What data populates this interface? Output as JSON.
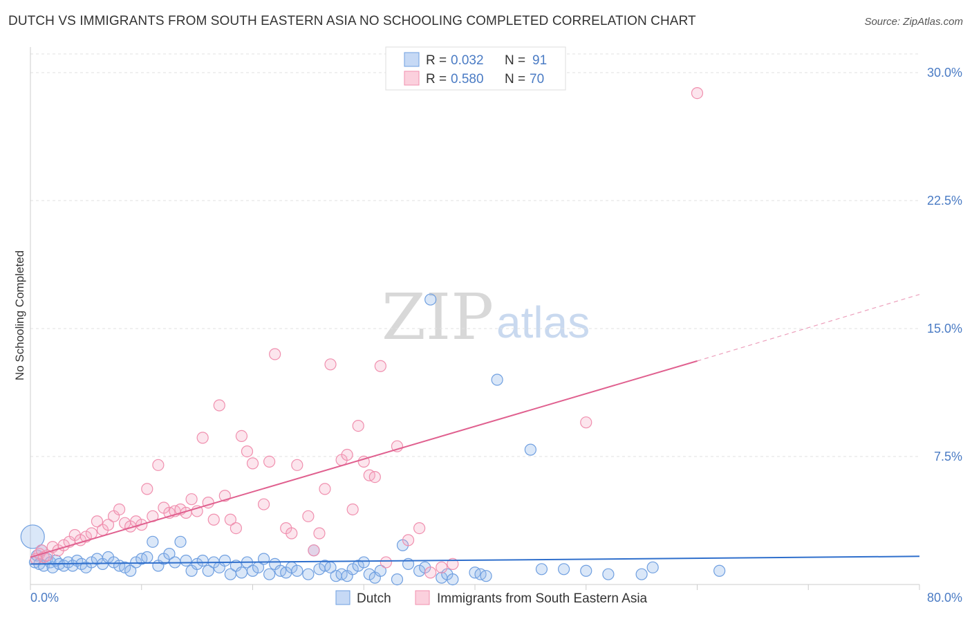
{
  "title": "DUTCH VS IMMIGRANTS FROM SOUTH EASTERN ASIA NO SCHOOLING COMPLETED CORRELATION CHART",
  "source": "Source: ZipAtlas.com",
  "watermark": {
    "zip": "ZIP",
    "atlas": "atlas"
  },
  "colors": {
    "dutch": "#6f9fe0",
    "dutch_line": "#2f6fcc",
    "immigrants": "#f08fae",
    "immigrants_line": "#e0608f",
    "axis_text": "#4a7bc4"
  },
  "chart_data": {
    "type": "scatter",
    "title": "DUTCH VS IMMIGRANTS FROM SOUTH EASTERN ASIA NO SCHOOLING COMPLETED CORRELATION CHART",
    "xlabel": "",
    "ylabel": "No Schooling Completed",
    "xlim": [
      0,
      80
    ],
    "ylim": [
      0,
      31.5
    ],
    "x_tick_labels": [
      "0.0%",
      "80.0%"
    ],
    "y_ticks": [
      7.5,
      15.0,
      22.5,
      30.0
    ],
    "y_tick_labels": [
      "7.5%",
      "15.0%",
      "22.5%",
      "30.0%"
    ],
    "grid": true,
    "legend_stats": [
      {
        "r_label": "R =",
        "r_value": "0.032",
        "n_label": "N =",
        "n_value": "91"
      },
      {
        "r_label": "R =",
        "r_value": "0.580",
        "n_label": "N =",
        "n_value": "70"
      }
    ],
    "series": [
      {
        "name": "Dutch",
        "trend": {
          "x0": 0,
          "y0": 1.2,
          "x1": 80,
          "y1": 1.65
        },
        "points": [
          [
            0.2,
            2.8
          ],
          [
            0.4,
            1.3
          ],
          [
            0.6,
            1.7
          ],
          [
            0.8,
            1.2
          ],
          [
            1.0,
            2.0
          ],
          [
            1.2,
            1.1
          ],
          [
            1.5,
            1.5
          ],
          [
            1.8,
            1.3
          ],
          [
            2.0,
            1.0
          ],
          [
            2.3,
            1.4
          ],
          [
            2.6,
            1.2
          ],
          [
            3.0,
            1.1
          ],
          [
            3.4,
            1.3
          ],
          [
            3.8,
            1.1
          ],
          [
            4.2,
            1.4
          ],
          [
            4.6,
            1.2
          ],
          [
            5.0,
            1.0
          ],
          [
            5.5,
            1.3
          ],
          [
            6.0,
            1.5
          ],
          [
            6.5,
            1.2
          ],
          [
            7.0,
            1.6
          ],
          [
            7.5,
            1.3
          ],
          [
            8.0,
            1.1
          ],
          [
            8.5,
            1.0
          ],
          [
            9.0,
            0.8
          ],
          [
            9.5,
            1.3
          ],
          [
            10.0,
            1.5
          ],
          [
            10.5,
            1.6
          ],
          [
            11.0,
            2.5
          ],
          [
            11.5,
            1.1
          ],
          [
            12.0,
            1.5
          ],
          [
            12.5,
            1.8
          ],
          [
            13.0,
            1.3
          ],
          [
            13.5,
            2.5
          ],
          [
            14.0,
            1.4
          ],
          [
            14.5,
            0.8
          ],
          [
            15.0,
            1.2
          ],
          [
            15.5,
            1.4
          ],
          [
            16.0,
            0.8
          ],
          [
            16.5,
            1.3
          ],
          [
            17.0,
            1.0
          ],
          [
            17.5,
            1.4
          ],
          [
            18.0,
            0.6
          ],
          [
            18.5,
            1.1
          ],
          [
            19.0,
            0.7
          ],
          [
            19.5,
            1.3
          ],
          [
            20.0,
            0.8
          ],
          [
            20.5,
            1.0
          ],
          [
            21.0,
            1.5
          ],
          [
            21.5,
            0.6
          ],
          [
            22.0,
            1.2
          ],
          [
            22.5,
            0.8
          ],
          [
            23.0,
            0.7
          ],
          [
            23.5,
            1.0
          ],
          [
            24.0,
            0.8
          ],
          [
            25.0,
            0.6
          ],
          [
            25.5,
            2.0
          ],
          [
            26.0,
            0.9
          ],
          [
            26.5,
            1.1
          ],
          [
            27.0,
            1.0
          ],
          [
            27.5,
            0.5
          ],
          [
            28.0,
            0.6
          ],
          [
            28.5,
            0.5
          ],
          [
            29.0,
            0.9
          ],
          [
            29.5,
            1.1
          ],
          [
            30.0,
            1.3
          ],
          [
            30.5,
            0.6
          ],
          [
            31.0,
            0.4
          ],
          [
            31.5,
            0.8
          ],
          [
            33.0,
            0.3
          ],
          [
            33.5,
            2.3
          ],
          [
            34.0,
            1.2
          ],
          [
            35.0,
            0.8
          ],
          [
            35.5,
            1.0
          ],
          [
            36.0,
            16.7
          ],
          [
            37.0,
            0.4
          ],
          [
            37.5,
            0.6
          ],
          [
            38.0,
            0.3
          ],
          [
            40.0,
            0.7
          ],
          [
            40.5,
            0.6
          ],
          [
            41.0,
            0.5
          ],
          [
            42.0,
            12.0
          ],
          [
            45.0,
            7.9
          ],
          [
            46.0,
            0.9
          ],
          [
            48.0,
            0.9
          ],
          [
            50.0,
            0.8
          ],
          [
            52.0,
            0.6
          ],
          [
            55.0,
            0.6
          ],
          [
            56.0,
            1.0
          ],
          [
            62.0,
            0.8
          ]
        ]
      },
      {
        "name": "Immigrants from South Eastern Asia",
        "trend": {
          "x0": 0,
          "y0": 1.6,
          "x1": 60,
          "y1": 13.1,
          "dashed_x1": 80,
          "dashed_y1": 17.0
        },
        "points": [
          [
            0.5,
            1.5
          ],
          [
            0.8,
            1.8
          ],
          [
            1.0,
            2.0
          ],
          [
            1.2,
            1.6
          ],
          [
            1.5,
            1.7
          ],
          [
            2.0,
            2.2
          ],
          [
            2.5,
            2.0
          ],
          [
            3.0,
            2.3
          ],
          [
            3.5,
            2.5
          ],
          [
            4.0,
            2.9
          ],
          [
            4.5,
            2.6
          ],
          [
            5.0,
            2.8
          ],
          [
            5.5,
            3.0
          ],
          [
            6.0,
            3.7
          ],
          [
            6.5,
            3.2
          ],
          [
            7.0,
            3.5
          ],
          [
            7.5,
            4.0
          ],
          [
            8.0,
            4.4
          ],
          [
            8.5,
            3.6
          ],
          [
            9.0,
            3.4
          ],
          [
            9.5,
            3.7
          ],
          [
            10.0,
            3.5
          ],
          [
            10.5,
            5.6
          ],
          [
            11.0,
            4.0
          ],
          [
            11.5,
            7.0
          ],
          [
            12.0,
            4.5
          ],
          [
            12.5,
            4.2
          ],
          [
            13.0,
            4.3
          ],
          [
            13.5,
            4.4
          ],
          [
            14.0,
            4.2
          ],
          [
            14.5,
            5.0
          ],
          [
            15.0,
            4.3
          ],
          [
            15.5,
            8.6
          ],
          [
            16.0,
            4.8
          ],
          [
            16.5,
            3.8
          ],
          [
            17.0,
            10.5
          ],
          [
            17.5,
            5.2
          ],
          [
            18.0,
            3.8
          ],
          [
            18.5,
            3.3
          ],
          [
            19.0,
            8.7
          ],
          [
            19.5,
            7.8
          ],
          [
            20.0,
            7.1
          ],
          [
            21.0,
            4.7
          ],
          [
            21.5,
            7.2
          ],
          [
            22.0,
            13.5
          ],
          [
            23.0,
            3.3
          ],
          [
            23.5,
            3.0
          ],
          [
            24.0,
            7.0
          ],
          [
            25.0,
            4.0
          ],
          [
            25.5,
            2.0
          ],
          [
            26.0,
            3.0
          ],
          [
            26.5,
            5.6
          ],
          [
            27.0,
            12.9
          ],
          [
            28.0,
            7.3
          ],
          [
            28.5,
            7.6
          ],
          [
            29.0,
            4.4
          ],
          [
            29.5,
            9.3
          ],
          [
            30.0,
            7.2
          ],
          [
            30.5,
            6.4
          ],
          [
            31.0,
            6.3
          ],
          [
            31.5,
            12.8
          ],
          [
            32.0,
            1.3
          ],
          [
            33.0,
            8.1
          ],
          [
            34.0,
            2.6
          ],
          [
            35.0,
            3.3
          ],
          [
            36.0,
            0.7
          ],
          [
            37.0,
            1.0
          ],
          [
            38.0,
            1.2
          ],
          [
            50.0,
            9.5
          ],
          [
            60.0,
            28.8
          ]
        ]
      }
    ]
  },
  "bottom_legend": [
    {
      "label": "Dutch"
    },
    {
      "label": "Immigrants from South Eastern Asia"
    }
  ]
}
